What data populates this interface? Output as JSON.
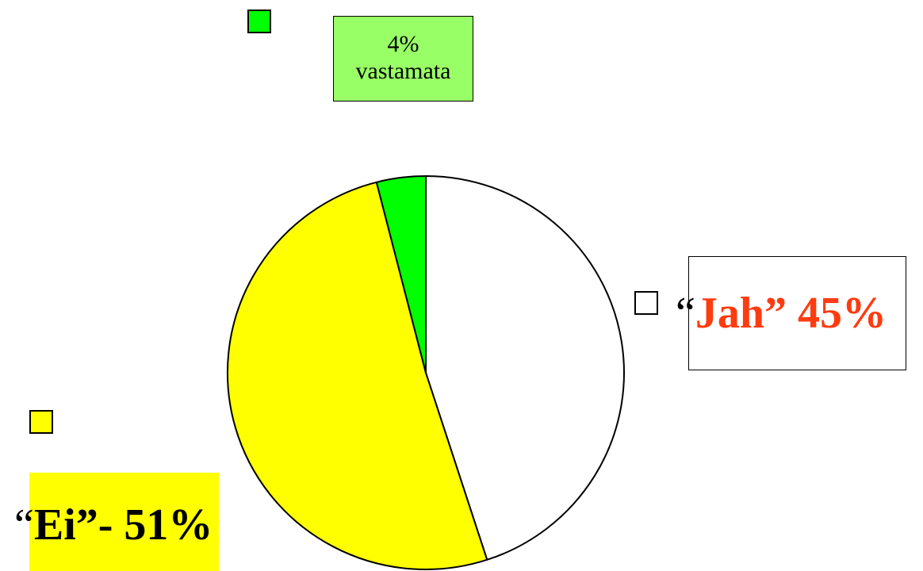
{
  "chart_data": {
    "type": "pie",
    "title": "",
    "slices": [
      {
        "label": "“Jah” 45%",
        "value": 45,
        "color": "#ffffff"
      },
      {
        "label": "“Ei”- 51%",
        "value": 51,
        "color": "#ffff00"
      },
      {
        "label": "4% vastamata",
        "value": 4,
        "color": "#00ff00"
      }
    ],
    "labels": {
      "jah": {
        "open_quote": "“",
        "text": "Jah” 45%",
        "text_color": "#ff3b10",
        "swatch_color": "#ffffff"
      },
      "ei": {
        "open_quote": "“",
        "text": "Ei”- 51%",
        "box_color": "#ffff00",
        "swatch_color": "#ffff00"
      },
      "vastamata": {
        "value": "4%",
        "name": "vastamata",
        "box_color": "#99ff66",
        "swatch_color": "#00ff00"
      }
    }
  }
}
